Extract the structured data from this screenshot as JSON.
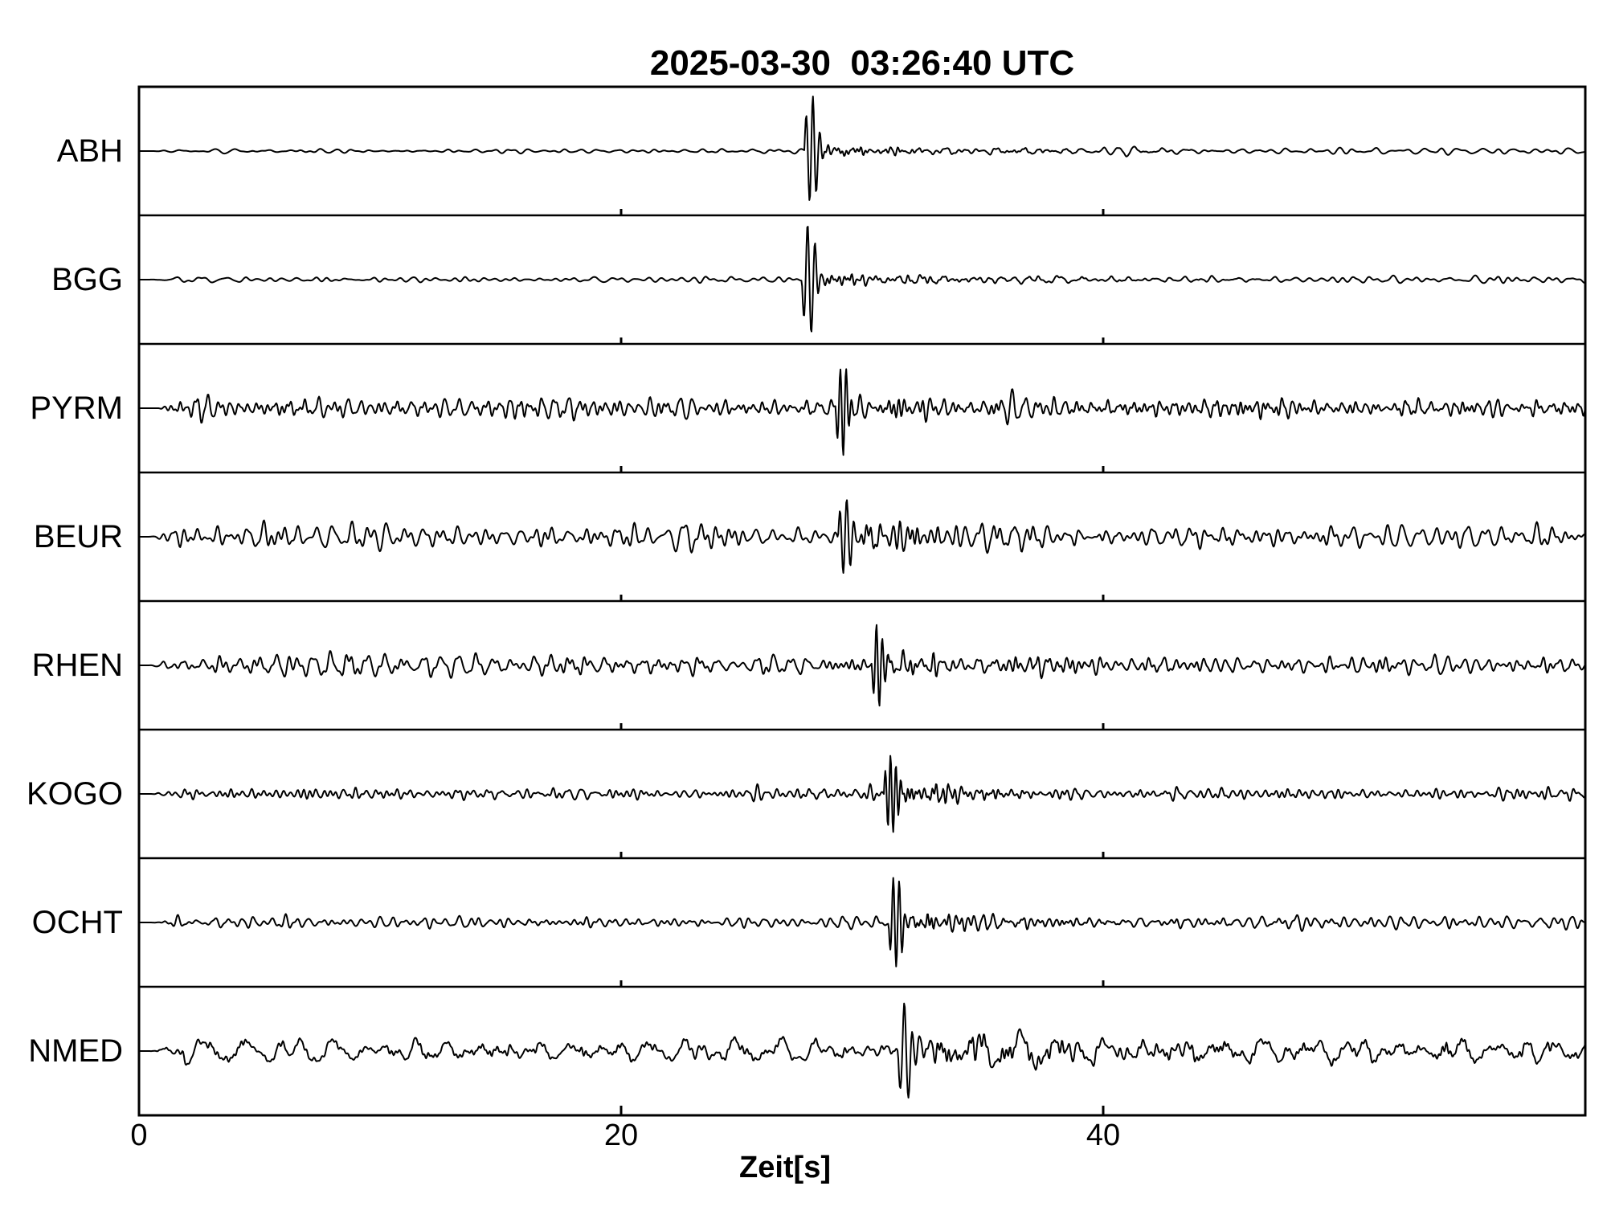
{
  "chart_data": {
    "type": "line",
    "title": "2025-03-30  03:26:40 UTC",
    "xlabel": "Zeit[s]",
    "x_range": [
      0,
      60
    ],
    "x_ticks": [
      0,
      20,
      40
    ],
    "x_tick_labels": [
      "0",
      "20",
      "40"
    ],
    "n_panels": 8,
    "line_color": "#000000",
    "background_color": "#ffffff",
    "stations": [
      {
        "name": "ABH",
        "onset_s": 27.6,
        "pre_noise": 0.055,
        "post_noise": 0.1,
        "noise_band_hz": [
          0.8,
          3.0
        ],
        "spike": 0.85,
        "spike_hz": 3.5,
        "coda": 0.18,
        "coda_decay_s": 5.0,
        "burst_band_hz": [
          2.5,
          7.0
        ],
        "seed": 11,
        "spike_sign": 1
      },
      {
        "name": "BGG",
        "onset_s": 27.5,
        "pre_noise": 0.07,
        "post_noise": 0.11,
        "noise_band_hz": [
          0.8,
          3.0
        ],
        "spike": 0.92,
        "spike_hz": 3.2,
        "coda": 0.2,
        "coda_decay_s": 5.5,
        "burst_band_hz": [
          2.5,
          7.0
        ],
        "seed": 23,
        "spike_sign": -1
      },
      {
        "name": "PYRM",
        "onset_s": 28.9,
        "pre_noise": 0.28,
        "post_noise": 0.28,
        "noise_band_hz": [
          1.5,
          5.5
        ],
        "spike": 0.7,
        "spike_hz": 4.0,
        "coda": 0.38,
        "coda_decay_s": 7.0,
        "burst_band_hz": [
          2.0,
          6.0
        ],
        "seed": 37,
        "spike_sign": -1
      },
      {
        "name": "BEUR",
        "onset_s": 29.0,
        "pre_noise": 0.34,
        "post_noise": 0.32,
        "noise_band_hz": [
          1.0,
          4.0
        ],
        "spike": 0.65,
        "spike_hz": 3.5,
        "coda": 0.4,
        "coda_decay_s": 7.0,
        "burst_band_hz": [
          2.0,
          6.0
        ],
        "seed": 41,
        "spike_sign": 1
      },
      {
        "name": "RHEN",
        "onset_s": 30.4,
        "pre_noise": 0.26,
        "post_noise": 0.26,
        "noise_band_hz": [
          1.2,
          4.5
        ],
        "spike": 0.72,
        "spike_hz": 4.0,
        "coda": 0.36,
        "coda_decay_s": 6.0,
        "burst_band_hz": [
          2.0,
          6.5
        ],
        "seed": 53,
        "spike_sign": -1
      },
      {
        "name": "KOGO",
        "onset_s": 30.9,
        "pre_noise": 0.16,
        "post_noise": 0.17,
        "noise_band_hz": [
          1.5,
          5.0
        ],
        "spike": 0.62,
        "spike_hz": 4.5,
        "coda": 0.28,
        "coda_decay_s": 5.0,
        "burst_band_hz": [
          2.5,
          7.0
        ],
        "seed": 61,
        "spike_sign": 1
      },
      {
        "name": "OCHT",
        "onset_s": 31.1,
        "pre_noise": 0.16,
        "post_noise": 0.17,
        "noise_band_hz": [
          1.2,
          4.5
        ],
        "spike": 0.7,
        "spike_hz": 4.0,
        "coda": 0.28,
        "coda_decay_s": 5.5,
        "burst_band_hz": [
          2.5,
          7.0
        ],
        "seed": 71,
        "spike_sign": -1
      },
      {
        "name": "NMED",
        "onset_s": 31.5,
        "pre_noise": 0.33,
        "post_noise": 0.33,
        "noise_band_hz": [
          0.45,
          1.8
        ],
        "spike": 0.95,
        "spike_hz": 3.0,
        "coda": 0.42,
        "coda_decay_s": 8.0,
        "burst_band_hz": [
          1.5,
          5.0
        ],
        "seed": 83,
        "spike_sign": -1,
        "hf_noise": 0.08,
        "hf_band_hz": [
          3.0,
          8.0
        ]
      }
    ]
  }
}
